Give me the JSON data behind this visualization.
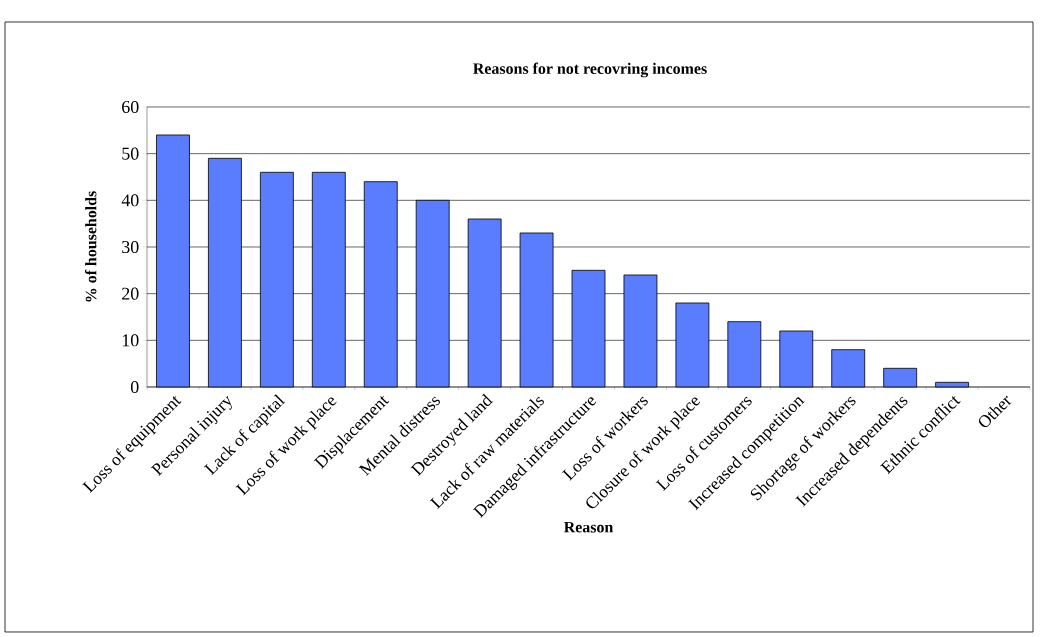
{
  "chart_data": {
    "type": "bar",
    "title": "Reasons for not recovring incomes",
    "xlabel": "Reason",
    "ylabel": "% of households",
    "categories": [
      "Loss of equipment",
      "Personal injury",
      "Lack of capital",
      "Loss of work place",
      "Displacement",
      "Mental distress",
      "Destroyed land",
      "Lack of raw materials",
      "Damaged infrastructure",
      "Loss of workers",
      "Closure of work place",
      "Loss of customers",
      "Increased competition",
      "Shortage of workers",
      "Increased dependents",
      "Ethnic conflict",
      "Other"
    ],
    "values": [
      54,
      49,
      46,
      46,
      44,
      40,
      36,
      33,
      25,
      24,
      18,
      14,
      12,
      8,
      4,
      1,
      0
    ],
    "color": "#5a7cff",
    "ylim": [
      0,
      60
    ],
    "yticks": [
      0,
      10,
      20,
      30,
      40,
      50,
      60
    ],
    "grid": "y"
  }
}
